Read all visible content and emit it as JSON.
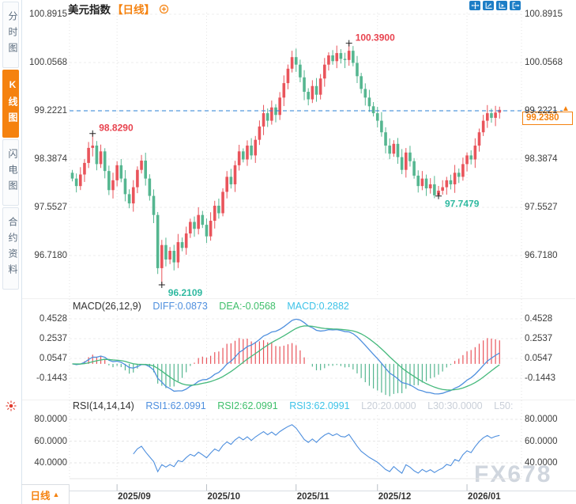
{
  "app": {
    "watermark": "FX678"
  },
  "colors": {
    "candle_up_red": "#e9545b",
    "candle_down_green": "#55b690",
    "accent_orange": "#f5820f",
    "ref_line_blue": "#2a7fd4",
    "diff_line_blue": "#4e8fde",
    "dea_line_green": "#45b97c",
    "macd_cyan": "#3ec3e8",
    "icon_blue": "#1e7ec6",
    "marker_red": "#e8434f",
    "marker_green": "#2fb9a0",
    "watermark_gray": "#d0d6de"
  },
  "sidebar": {
    "tabs": [
      {
        "label": "分时图",
        "name": "tab-time-share-chart",
        "active": false
      },
      {
        "label": "K线图",
        "name": "tab-kline-chart",
        "active": true
      },
      {
        "label": "闪电图",
        "name": "tab-flash-chart",
        "active": false
      },
      {
        "label": "合约资料",
        "name": "tab-contract-info",
        "active": false
      }
    ],
    "icons": [
      {
        "name": "sun-indicator-icon"
      }
    ]
  },
  "header": {
    "instrument": "美元指数",
    "period_tag": "【日线】",
    "icons": [
      {
        "name": "circle-plus-icon"
      }
    ]
  },
  "toolbar": {
    "icons": [
      {
        "name": "crosshair-move-icon"
      },
      {
        "name": "axis-scale-icon"
      },
      {
        "name": "axis-play-icon"
      },
      {
        "name": "exit-right-icon"
      }
    ]
  },
  "price_panel": {
    "axis_labels": [
      "100.8915",
      "100.0568",
      "99.2221",
      "98.3874",
      "97.5527",
      "96.7180"
    ],
    "reference_line": {
      "label": "99.2221",
      "arrow": "▲"
    },
    "current_price": {
      "label": "99.2380"
    }
  },
  "macd_panel": {
    "title": "MACD(26,12,9)",
    "diff_label": "DIFF:0.0873",
    "dea_label": "DEA:-0.0568",
    "macd_label": "MACD:0.2882",
    "axis_labels": [
      "0.4528",
      "0.2537",
      "0.0547",
      "-0.1443"
    ]
  },
  "rsi_panel": {
    "title": "RSI(14,14,14)",
    "rsi1_label": "RSI1:62.0991",
    "rsi2_label": "RSI2:62.0991",
    "rsi3_label": "RSI3:62.0991",
    "l20_label": "L20:20.0000",
    "l30_label": "L30:30.0000",
    "l50_label": "L50:",
    "axis_labels": [
      "80.0000",
      "60.0000",
      "40.0000"
    ]
  },
  "bottom_bar": {
    "period_label": "日线",
    "arrow": "▲"
  },
  "chart_data": {
    "type": "candlestick",
    "title": "美元指数 日线 (US Dollar Index, daily)",
    "price_axis": [
      100.8915,
      100.0568,
      99.2221,
      98.3874,
      97.5527,
      96.718
    ],
    "reference_price": 99.2221,
    "current_price": 99.238,
    "first_open": 98.15,
    "closes": [
      98.05,
      97.92,
      98.12,
      98.32,
      98.58,
      98.62,
      98.3,
      98.52,
      98.18,
      97.85,
      98.02,
      98.28,
      98.05,
      97.78,
      97.62,
      97.9,
      98.2,
      98.36,
      98.05,
      97.75,
      97.42,
      96.5,
      96.9,
      96.65,
      96.8,
      96.6,
      96.95,
      96.85,
      97.1,
      97.3,
      97.18,
      97.42,
      97.25,
      97.05,
      97.32,
      97.58,
      97.45,
      97.82,
      98.08,
      97.95,
      98.28,
      98.52,
      98.38,
      98.62,
      98.45,
      98.72,
      98.95,
      99.18,
      99.05,
      99.28,
      99.15,
      99.45,
      99.7,
      99.95,
      100.15,
      100.02,
      99.8,
      99.55,
      99.42,
      99.65,
      99.5,
      99.78,
      100.02,
      100.18,
      100.08,
      100.22,
      100.12,
      100.1,
      100.26,
      100.05,
      99.82,
      99.6,
      99.45,
      99.3,
      99.18,
      99.05,
      98.85,
      98.62,
      98.48,
      98.65,
      98.42,
      98.2,
      98.5,
      98.35,
      98.1,
      97.92,
      98.05,
      97.88,
      97.95,
      97.76,
      97.84,
      97.9,
      98.02,
      97.95,
      98.15,
      98.08,
      98.3,
      98.45,
      98.38,
      98.62,
      98.85,
      99.05,
      99.18,
      99.1,
      99.19,
      99.238
    ],
    "wick_overrides": {
      "5": {
        "high": 98.829
      },
      "22": {
        "low": 96.2109
      },
      "68": {
        "high": 100.39
      },
      "90": {
        "low": 97.7479
      }
    },
    "markers": [
      {
        "index": 5,
        "side": "high",
        "label": "98.8290",
        "color": "#e8434f"
      },
      {
        "index": 68,
        "side": "high",
        "label": "100.3900",
        "color": "#e8434f"
      },
      {
        "index": 22,
        "side": "low",
        "label": "96.2109",
        "color": "#2fb9a0"
      },
      {
        "index": 90,
        "side": "low",
        "label": "97.7479",
        "color": "#2fb9a0"
      }
    ],
    "x_ticks": [
      {
        "index": 11,
        "label": "2025/09"
      },
      {
        "index": 33,
        "label": "2025/10"
      },
      {
        "index": 55,
        "label": "2025/11"
      },
      {
        "index": 75,
        "label": "2025/12"
      },
      {
        "index": 97,
        "label": "2026/01"
      }
    ],
    "indicators": {
      "macd": {
        "params": [
          26,
          12,
          9
        ],
        "diff": 0.0873,
        "dea": -0.0568,
        "macd": 0.2882,
        "axis": [
          0.4528,
          0.2537,
          0.0547,
          -0.1443
        ]
      },
      "rsi": {
        "params": [
          14,
          14,
          14
        ],
        "rsi1": 62.0991,
        "rsi2": 62.0991,
        "rsi3": 62.0991,
        "axis": [
          80,
          60,
          40
        ]
      }
    }
  }
}
